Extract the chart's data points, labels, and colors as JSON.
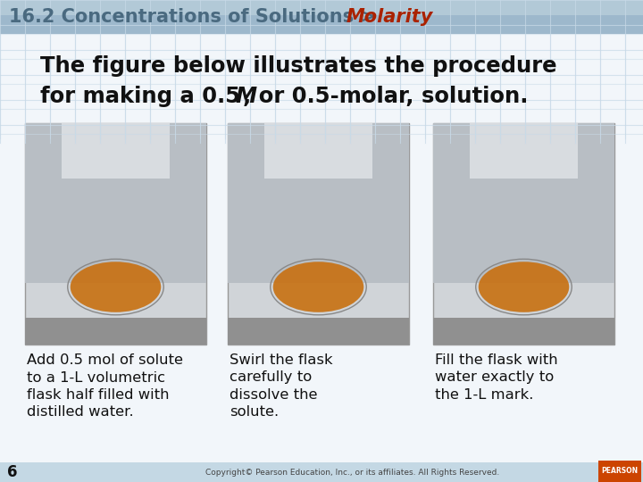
{
  "bg_color": "#e8f0f8",
  "header_bg": "#b8ccd8",
  "header_text1": "16.2 Concentrations of Solutions > ",
  "header_text2": "Molarity",
  "header_color1": "#4a6a80",
  "header_color2": "#aa2200",
  "main_bg": "#f0f4f8",
  "main_text_line1": "The figure below illustrates the procedure",
  "main_text_line2_plain": "for making a 0.5",
  "main_text_line2_italic": "M",
  "main_text_line2_rest": ", or 0.5-molar, solution.",
  "main_text_color": "#111111",
  "caption1_lines": [
    "Add 0.5 mol of solute",
    "to a 1-L volumetric",
    "flask half filled with",
    "distilled water."
  ],
  "caption2_lines": [
    "Swirl the flask",
    "carefully to",
    "dissolve the",
    "solute."
  ],
  "caption3_lines": [
    "Fill the flask with",
    "water exactly to",
    "the 1-L mark."
  ],
  "caption_color": "#111111",
  "slide_number": "6",
  "copyright_text": "Copyright© Pearson Education, Inc., or its affiliates. All Rights Reserved.",
  "grid_color": "#c8dae8",
  "photo_bg": "#cccccc",
  "photo_border_color": "#888888",
  "photo_orange": "#c87010",
  "photo_grey_top": "#b0b8c0",
  "photo_white": "#e8e8e8"
}
